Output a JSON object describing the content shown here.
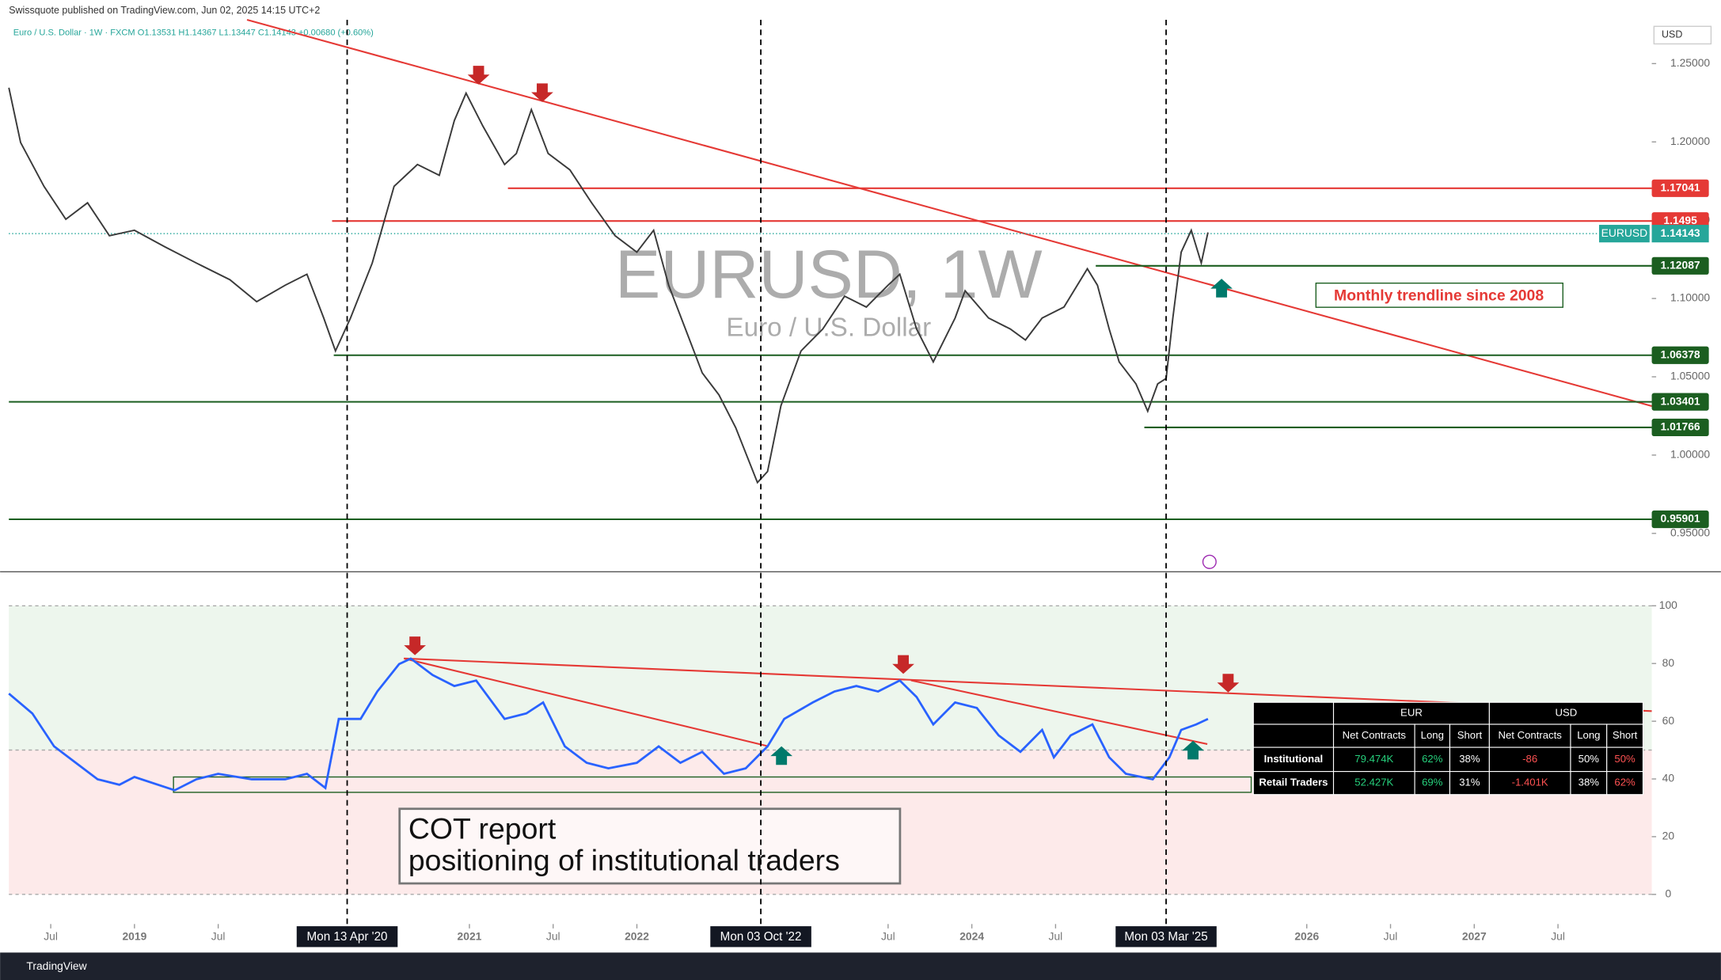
{
  "header": "Swissquote published on TradingView.com, Jun 02, 2025 14:15 UTC+2",
  "footer": "TradingView",
  "symbol_info": "Euro / U.S. Dollar · 1W · FXCM  O1.13531  H1.14367  L1.13447  C1.14143  +0.00680 (+0.60%)",
  "currency": "USD",
  "watermark": {
    "title": "EURUSD, 1W",
    "subtitle": "Euro / U.S. Dollar"
  },
  "annotations": {
    "trendline": "Monthly trendline since 2008",
    "cot_note": [
      "COT report",
      "positioning of institutional traders"
    ]
  },
  "crosshair_labels": [
    {
      "value": 2020.27,
      "label": "Mon 13 Apr '20"
    },
    {
      "value": 2022.74,
      "label": "Mon 03 Oct '22"
    },
    {
      "value": 2025.16,
      "label": "Mon 03 Mar '25"
    }
  ],
  "chart_data": [
    {
      "type": "line",
      "name": "EURUSD",
      "color": "#3a3a3a",
      "x": [
        2018.25,
        2018.32,
        2018.46,
        2018.59,
        2018.72,
        2018.85,
        2019.0,
        2019.18,
        2019.37,
        2019.57,
        2019.73,
        2019.9,
        2020.03,
        2020.13,
        2020.2,
        2020.29,
        2020.42,
        2020.55,
        2020.69,
        2020.82,
        2020.91,
        2020.98,
        2021.08,
        2021.21,
        2021.28,
        2021.37,
        2021.47,
        2021.6,
        2021.73,
        2021.87,
        2022.0,
        2022.1,
        2022.19,
        2022.29,
        2022.39,
        2022.49,
        2022.59,
        2022.72,
        2022.78,
        2022.86,
        2022.98,
        2023.11,
        2023.24,
        2023.37,
        2023.5,
        2023.57,
        2023.67,
        2023.77,
        2023.9,
        2023.96,
        2024.1,
        2024.23,
        2024.32,
        2024.42,
        2024.55,
        2024.69,
        2024.75,
        2024.82,
        2024.88,
        2024.98,
        2025.05,
        2025.11,
        2025.16,
        2025.2,
        2025.25,
        2025.31,
        2025.37,
        2025.41
      ],
      "values": [
        1.2346,
        1.1996,
        1.1716,
        1.1506,
        1.1611,
        1.1401,
        1.1436,
        1.1331,
        1.1226,
        1.112,
        1.098,
        1.1085,
        1.1155,
        1.0875,
        1.0665,
        1.0875,
        1.1226,
        1.1716,
        1.1856,
        1.1786,
        1.2136,
        1.2311,
        1.2101,
        1.1856,
        1.1926,
        1.2206,
        1.1926,
        1.1821,
        1.1611,
        1.1401,
        1.1296,
        1.1436,
        1.1085,
        1.0805,
        1.0525,
        1.0385,
        1.0175,
        0.9825,
        0.9895,
        1.0315,
        1.0665,
        1.0805,
        1.1015,
        1.0945,
        1.1085,
        1.1155,
        1.0805,
        1.0595,
        1.0875,
        1.105,
        1.0875,
        1.0805,
        1.0735,
        1.0875,
        1.0945,
        1.119,
        1.1085,
        1.0805,
        1.0595,
        1.0455,
        1.028,
        1.0455,
        1.049,
        1.0875,
        1.1296,
        1.1436,
        1.1226,
        1.1422
      ],
      "xlim": [
        2018.25,
        2028.06
      ],
      "xticks": [
        {
          "value": 2018.5,
          "label": "Jul"
        },
        2019,
        {
          "value": 2019.5,
          "label": "Jul"
        },
        2021,
        {
          "value": 2021.5,
          "label": "Jul"
        },
        2022,
        {
          "value": 2023.5,
          "label": "Jul"
        },
        2024,
        {
          "value": 2024.5,
          "label": "Jul"
        },
        2026,
        {
          "value": 2026.5,
          "label": "Jul"
        },
        2027,
        {
          "value": 2027.5,
          "label": "Jul"
        }
      ],
      "ylim": [
        0.9262,
        1.2766
      ],
      "yticks": [
        {
          "value": 0.95,
          "label": "0.95000"
        },
        {
          "value": 1.0,
          "label": "1.00000"
        },
        {
          "value": 1.05,
          "label": "1.05000"
        },
        {
          "value": 1.1,
          "label": "1.10000"
        },
        {
          "value": 1.15,
          "label": "1.15000"
        },
        {
          "value": 1.2,
          "label": "1.20000"
        },
        {
          "value": 1.25,
          "label": "1.25000"
        }
      ],
      "levels": [
        {
          "value": 1.17041,
          "start": 2021.23,
          "color": "#e53935"
        },
        {
          "value": 1.1495,
          "start": 2020.18,
          "color": "#e53935"
        },
        {
          "value": 1.12087,
          "start": 2024.74,
          "color": "#1b5e20"
        },
        {
          "value": 1.06378,
          "start": 2020.19,
          "color": "#1b5e20"
        },
        {
          "value": 1.03401,
          "start": 2018.25,
          "color": "#1b5e20"
        },
        {
          "value": 1.01766,
          "start": 2025.03,
          "color": "#1b5e20"
        },
        {
          "value": 0.95901,
          "start": 2018.25,
          "color": "#1b5e20"
        }
      ],
      "last_price": {
        "name": "EURUSD",
        "value": 1.14143,
        "color": "#26a69a"
      }
    },
    {
      "type": "line",
      "color": "#2962ff",
      "x": [
        2018.25,
        2018.39,
        2018.52,
        2018.65,
        2018.78,
        2018.91,
        2019.0,
        2019.14,
        2019.24,
        2019.37,
        2019.5,
        2019.7,
        2019.9,
        2020.03,
        2020.14,
        2020.22,
        2020.35,
        2020.45,
        2020.58,
        2020.65,
        2020.78,
        2020.91,
        2021.04,
        2021.21,
        2021.34,
        2021.44,
        2021.57,
        2021.7,
        2021.83,
        2022.0,
        2022.13,
        2022.26,
        2022.39,
        2022.52,
        2022.65,
        2022.78,
        2022.88,
        2023.05,
        2023.18,
        2023.31,
        2023.44,
        2023.57,
        2023.67,
        2023.77,
        2023.9,
        2024.03,
        2024.16,
        2024.29,
        2024.42,
        2024.49,
        2024.59,
        2024.72,
        2024.82,
        2024.92,
        2025.08,
        2025.18,
        2025.25,
        2025.34,
        2025.41
      ],
      "values": [
        69.6,
        62.7,
        51.3,
        45.6,
        39.9,
        38.0,
        40.7,
        38.0,
        36.1,
        39.9,
        41.8,
        39.9,
        39.9,
        41.8,
        36.9,
        60.8,
        60.8,
        70.3,
        79.8,
        81.7,
        76.0,
        72.2,
        74.1,
        60.8,
        62.7,
        66.5,
        51.3,
        45.6,
        43.7,
        45.6,
        51.3,
        45.6,
        49.4,
        41.8,
        43.7,
        51.3,
        60.8,
        66.5,
        70.3,
        72.2,
        70.3,
        74.1,
        68.4,
        58.9,
        66.5,
        64.6,
        55.1,
        49.4,
        57.0,
        47.5,
        55.1,
        58.9,
        47.5,
        41.8,
        39.9,
        47.5,
        57.0,
        58.9,
        60.8
      ],
      "ylim": [
        0,
        100
      ],
      "yticks": [
        0,
        20,
        40,
        60,
        80,
        100
      ],
      "zones": [
        {
          "from": 50,
          "to": 100,
          "color": "#edf6ed"
        },
        {
          "from": 0,
          "to": 50,
          "color": "#fdeaea"
        }
      ]
    }
  ],
  "table": {
    "groups": [
      "EUR",
      "USD"
    ],
    "columns": [
      "Net Contracts",
      "Long",
      "Short",
      "Net Contracts",
      "Long",
      "Short"
    ],
    "rows": [
      [
        "Institutional",
        "79.474K",
        "62%",
        "38%",
        "-86",
        "50%",
        "50%"
      ],
      [
        "Retail Traders",
        "52.427K",
        "69%",
        "31%",
        "-1.401K",
        "38%",
        "62%"
      ]
    ]
  }
}
